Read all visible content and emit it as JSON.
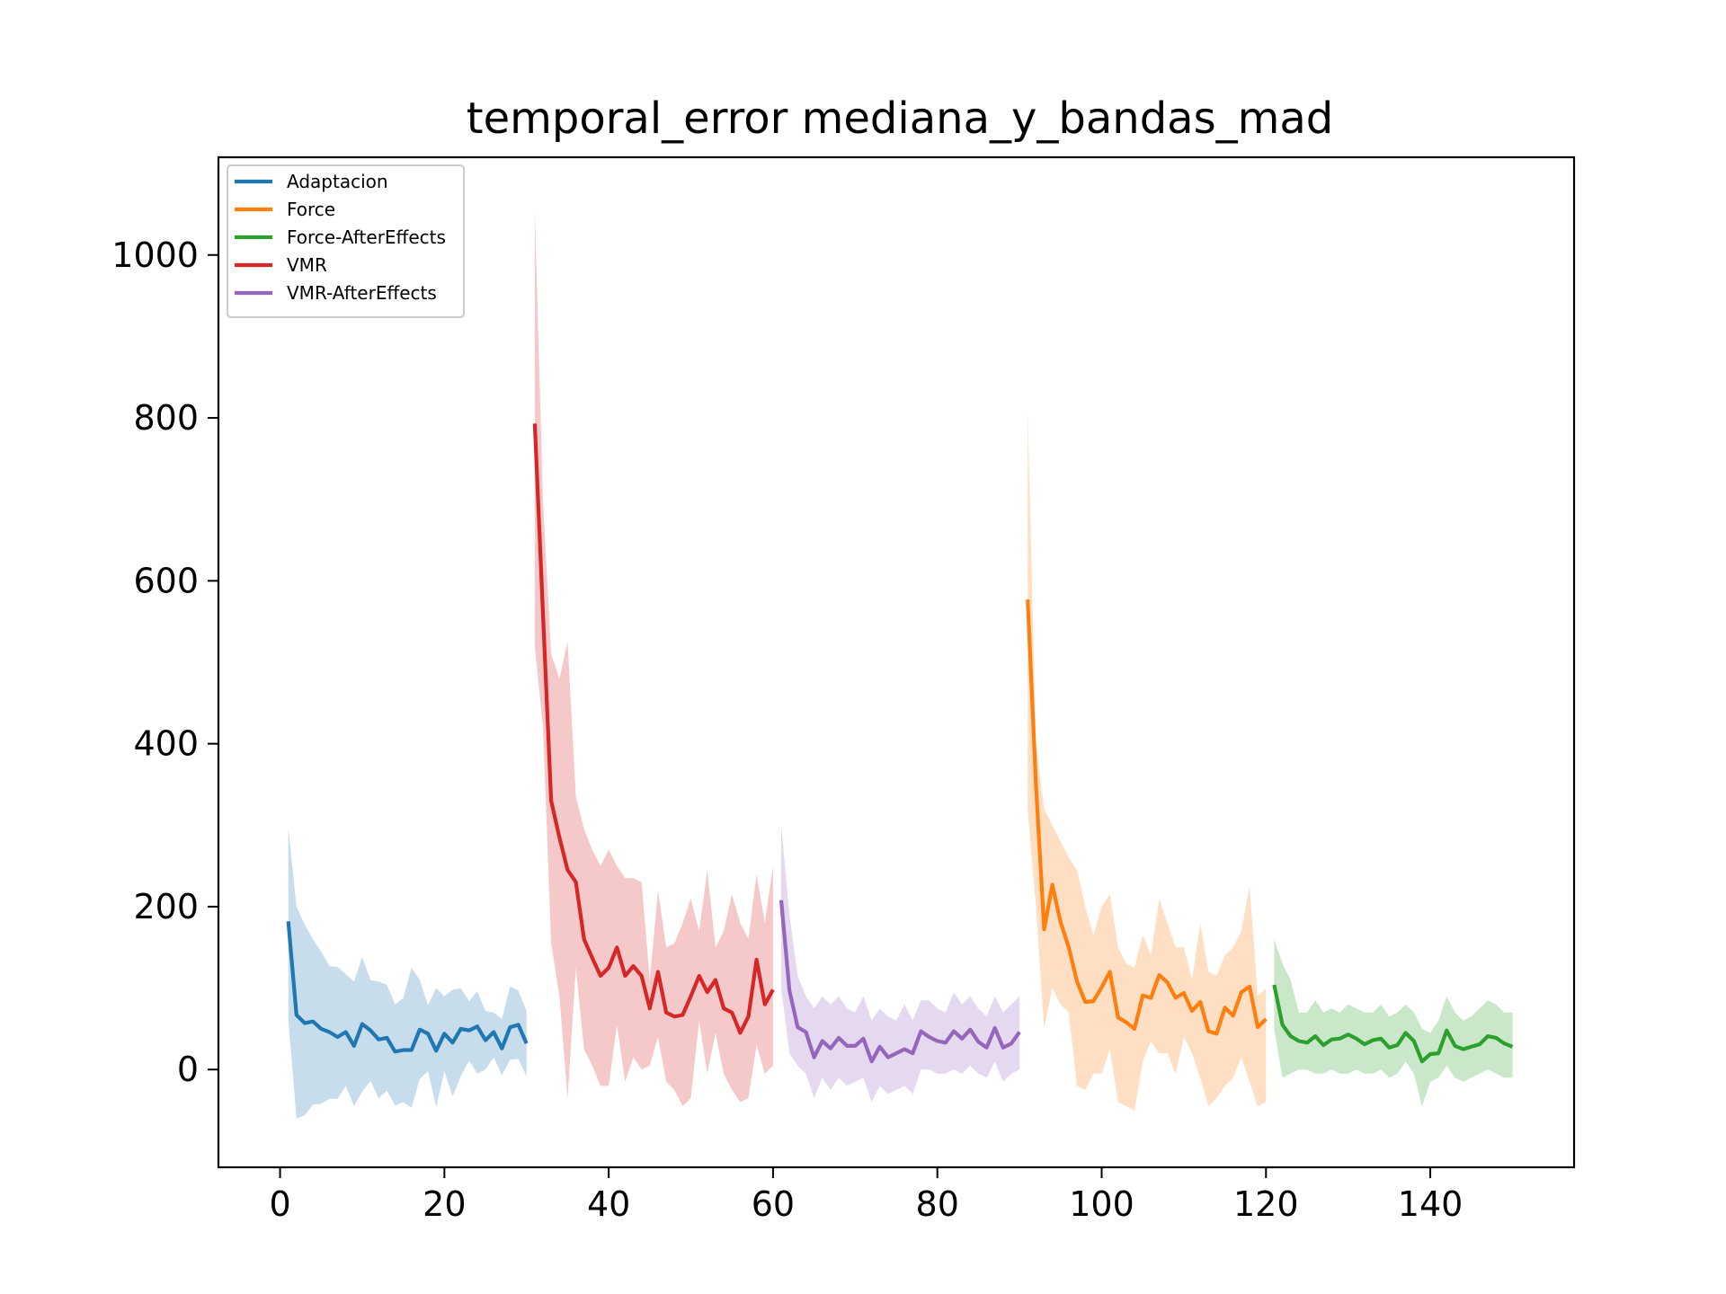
{
  "chart_data": {
    "type": "line",
    "title": "temporal_error mediana_y_bandas_mad",
    "xlabel": "",
    "ylabel": "",
    "xlim": [
      -7.5,
      157.5
    ],
    "ylim": [
      -120,
      1120
    ],
    "x_ticks": [
      0,
      20,
      40,
      60,
      80,
      100,
      120,
      140
    ],
    "y_ticks": [
      0,
      200,
      400,
      600,
      800,
      1000
    ],
    "x_tick_labels": [
      "0",
      "20",
      "40",
      "60",
      "80",
      "100",
      "120",
      "140"
    ],
    "y_tick_labels": [
      "0",
      "200",
      "400",
      "600",
      "800",
      "1000"
    ],
    "grid": false,
    "legend_position": "upper-left",
    "bands": "median ± MAD (shaded)",
    "series": [
      {
        "name": "Adaptacion",
        "color": "#1f77b4",
        "x_start": 1,
        "values": [
          182,
          67,
          57,
          59,
          50,
          46,
          40,
          46,
          29,
          56,
          48,
          37,
          39,
          22,
          24,
          24,
          49,
          44,
          23,
          44,
          33,
          50,
          48,
          53,
          36,
          46,
          26,
          52,
          55,
          32
        ],
        "upper": [
          297,
          200,
          178,
          160,
          145,
          127,
          126,
          117,
          108,
          138,
          110,
          108,
          104,
          80,
          88,
          125,
          110,
          79,
          100,
          90,
          98,
          100,
          84,
          96,
          72,
          70,
          62,
          102,
          97,
          72
        ],
        "lower": [
          62,
          -60,
          -56,
          -43,
          -42,
          -36,
          -36,
          -20,
          -45,
          -27,
          -14,
          -35,
          -26,
          -44,
          -40,
          -47,
          -12,
          -2,
          -46,
          -2,
          -33,
          -8,
          11,
          -5,
          0,
          15,
          -7,
          12,
          13,
          -8
        ]
      },
      {
        "name": "Force",
        "color": "#ff7f0e",
        "x_start": 91,
        "values": [
          577,
          350,
          172,
          227,
          181,
          150,
          108,
          83,
          84,
          101,
          120,
          64,
          58,
          50,
          91,
          88,
          116,
          107,
          88,
          94,
          72,
          83,
          47,
          44,
          76,
          66,
          95,
          102,
          52,
          62
        ],
        "upper": [
          810,
          400,
          320,
          300,
          280,
          260,
          245,
          200,
          165,
          200,
          215,
          150,
          130,
          125,
          165,
          140,
          210,
          180,
          150,
          150,
          110,
          180,
          120,
          115,
          140,
          150,
          170,
          225,
          90,
          100
        ],
        "lower": [
          320,
          200,
          50,
          100,
          80,
          70,
          -20,
          -25,
          -5,
          -5,
          25,
          -40,
          -45,
          -50,
          10,
          35,
          20,
          20,
          -5,
          40,
          20,
          -10,
          -45,
          -35,
          -20,
          -10,
          15,
          -15,
          -45,
          -40
        ]
      },
      {
        "name": "Force-AfterEffects",
        "color": "#2ca02c",
        "x_start": 121,
        "values": [
          104,
          55,
          41,
          35,
          33,
          41,
          30,
          37,
          38,
          43,
          38,
          31,
          36,
          38,
          27,
          30,
          45,
          35,
          10,
          19,
          20,
          48,
          29,
          25,
          28,
          31,
          41,
          39,
          32,
          28
        ],
        "upper": [
          160,
          130,
          110,
          70,
          70,
          85,
          70,
          75,
          70,
          80,
          75,
          70,
          70,
          80,
          65,
          70,
          80,
          70,
          50,
          45,
          60,
          90,
          70,
          60,
          65,
          75,
          85,
          80,
          70,
          70
        ],
        "lower": [
          50,
          -10,
          -5,
          0,
          0,
          -5,
          -5,
          0,
          -5,
          -5,
          0,
          -5,
          -5,
          0,
          -10,
          -5,
          10,
          -5,
          -45,
          -15,
          -10,
          5,
          -10,
          -15,
          -10,
          -5,
          0,
          -5,
          -10,
          -10
        ]
      },
      {
        "name": "VMR",
        "color": "#d62728",
        "x_start": 31,
        "values": [
          793,
          560,
          330,
          285,
          245,
          230,
          160,
          137,
          115,
          125,
          150,
          115,
          127,
          115,
          75,
          120,
          70,
          65,
          67,
          90,
          115,
          95,
          110,
          75,
          70,
          45,
          65,
          135,
          80,
          98
        ],
        "upper": [
          1055,
          700,
          510,
          480,
          525,
          335,
          295,
          270,
          250,
          270,
          250,
          235,
          235,
          230,
          110,
          220,
          150,
          155,
          180,
          210,
          170,
          245,
          150,
          170,
          215,
          180,
          160,
          240,
          180,
          250
        ],
        "lower": [
          520,
          420,
          155,
          90,
          -35,
          125,
          25,
          5,
          -20,
          -20,
          55,
          -15,
          15,
          0,
          5,
          40,
          -15,
          -25,
          -45,
          -35,
          60,
          -5,
          45,
          -5,
          -25,
          -40,
          -35,
          30,
          -5,
          5
        ]
      },
      {
        "name": "VMR-AfterEffects",
        "color": "#9467bd",
        "x_start": 61,
        "values": [
          208,
          97,
          52,
          46,
          15,
          35,
          26,
          39,
          29,
          29,
          38,
          10,
          28,
          15,
          20,
          25,
          20,
          47,
          40,
          35,
          33,
          47,
          38,
          49,
          34,
          27,
          51,
          27,
          32,
          46
        ],
        "upper": [
          300,
          190,
          115,
          90,
          75,
          90,
          80,
          90,
          75,
          70,
          90,
          60,
          75,
          65,
          60,
          80,
          60,
          85,
          85,
          75,
          70,
          95,
          80,
          90,
          75,
          65,
          90,
          70,
          80,
          90
        ],
        "lower": [
          100,
          20,
          5,
          -5,
          -35,
          -10,
          -25,
          -10,
          -20,
          -15,
          -10,
          -40,
          -20,
          -30,
          -25,
          -20,
          -30,
          0,
          0,
          -5,
          -5,
          0,
          -5,
          5,
          -5,
          -10,
          10,
          -15,
          -5,
          0
        ]
      }
    ]
  }
}
